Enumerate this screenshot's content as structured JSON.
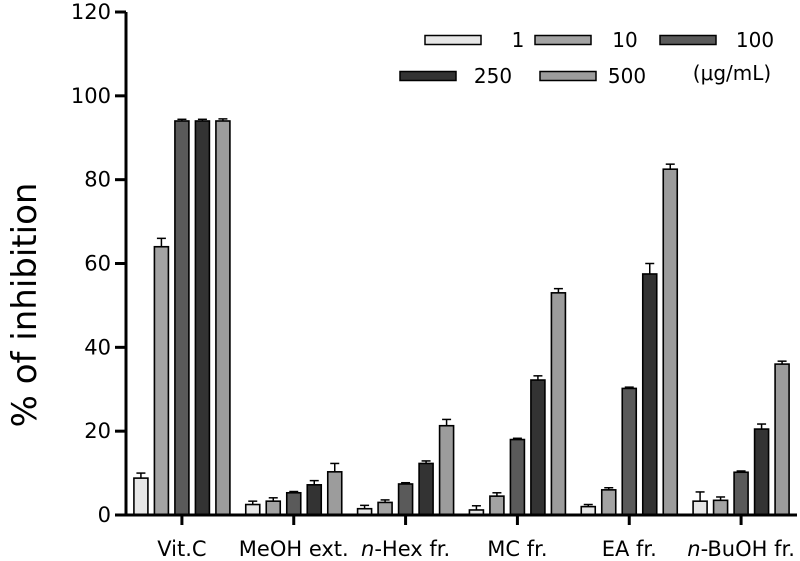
{
  "chart_data": {
    "type": "bar",
    "ylabel": "% of inhibition",
    "xlabel": "",
    "ylim": [
      0,
      120
    ],
    "yticks": [
      0,
      20,
      40,
      60,
      80,
      100,
      120
    ],
    "grid": false,
    "legend_placement": "top-right",
    "legend_unit": "(μg/mL)",
    "categories": [
      {
        "pre": "",
        "italic": "",
        "post": "Vit.C"
      },
      {
        "pre": "",
        "italic": "",
        "post": "MeOH ext."
      },
      {
        "pre": "",
        "italic": "n",
        "post": "-Hex fr."
      },
      {
        "pre": "",
        "italic": "",
        "post": "MC fr."
      },
      {
        "pre": "",
        "italic": "",
        "post": "EA fr."
      },
      {
        "pre": "",
        "italic": "n",
        "post": "-BuOH fr."
      }
    ],
    "series": [
      {
        "name": "1",
        "color": "#e6e6e6",
        "values": [
          8.8,
          2.5,
          1.5,
          1.2,
          2.0,
          3.3
        ],
        "errors": [
          1.2,
          0.8,
          0.8,
          1.0,
          0.5,
          2.2
        ]
      },
      {
        "name": "10",
        "color": "#a3a3a3",
        "values": [
          64.0,
          3.3,
          3.0,
          4.5,
          6.0,
          3.5
        ],
        "errors": [
          2.0,
          0.8,
          0.6,
          0.8,
          0.5,
          0.8
        ]
      },
      {
        "name": "100",
        "color": "#5a5a5a",
        "values": [
          94.0,
          5.3,
          7.4,
          18.0,
          30.2,
          10.2
        ],
        "errors": [
          0.4,
          0.3,
          0.3,
          0.3,
          0.3,
          0.3
        ]
      },
      {
        "name": "250",
        "color": "#333333",
        "values": [
          94.0,
          7.2,
          12.3,
          32.2,
          57.5,
          20.5
        ],
        "errors": [
          0.4,
          1.0,
          0.6,
          1.0,
          2.5,
          1.2
        ]
      },
      {
        "name": "500",
        "color": "#9c9c9c",
        "values": [
          94.0,
          10.3,
          21.3,
          53.0,
          82.5,
          36.0
        ],
        "errors": [
          0.5,
          2.0,
          1.5,
          1.0,
          1.2,
          0.7
        ]
      }
    ]
  }
}
